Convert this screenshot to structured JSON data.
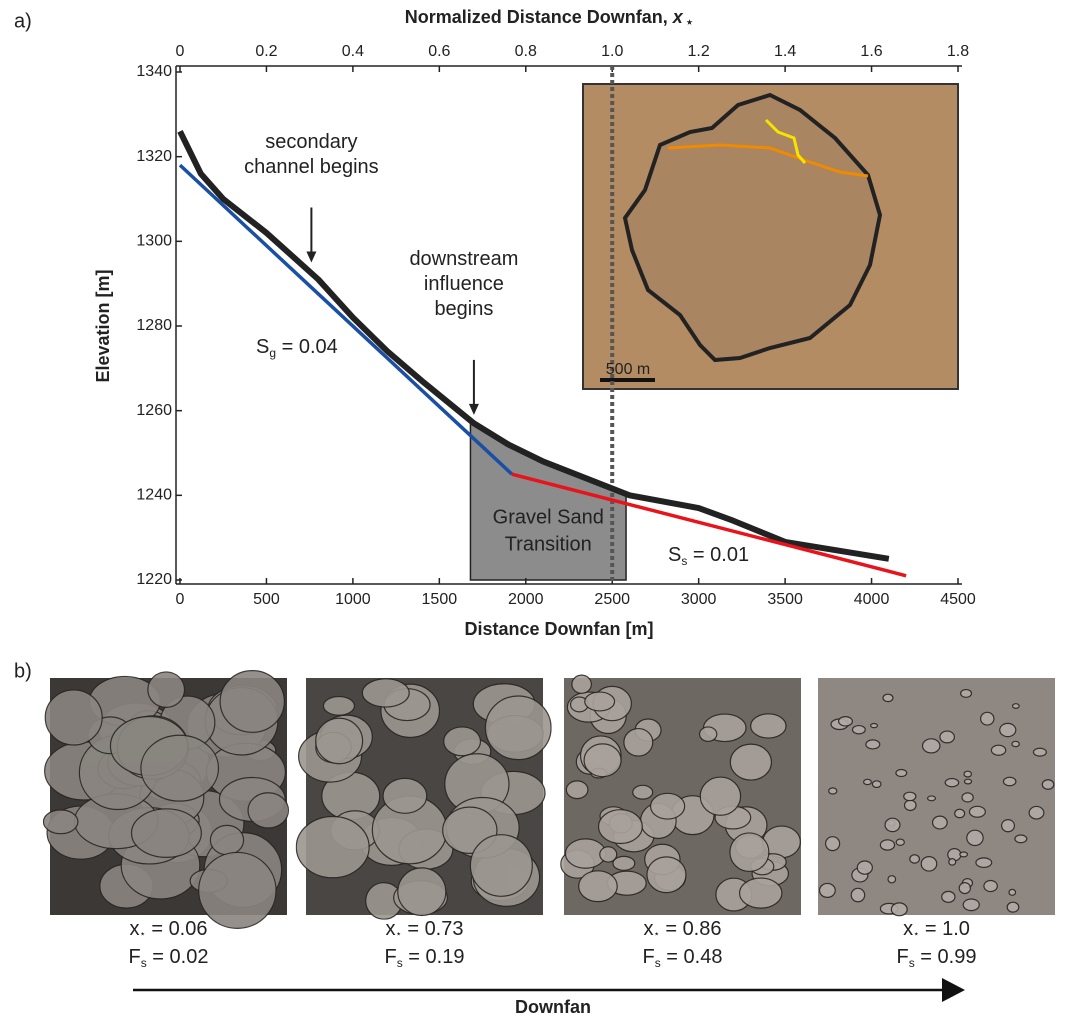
{
  "chart_data": {
    "type": "line",
    "panel_label": "a)",
    "xlabel": "Distance Downfan [m]",
    "ylabel": "Elevation [m]",
    "x2label": {
      "text": "Normalized Distance Downfan, ",
      "var": "x",
      "sub": "⋆"
    },
    "xlim": [
      0,
      4500
    ],
    "xticks": [
      0,
      500,
      1000,
      1500,
      2000,
      2500,
      3000,
      3500,
      4000,
      4500
    ],
    "ylim": [
      1220,
      1340
    ],
    "yticks": [
      1220,
      1240,
      1260,
      1280,
      1300,
      1320,
      1340
    ],
    "x2lim": [
      0,
      1.8
    ],
    "x2ticks": [
      0,
      0.2,
      0.4,
      0.6,
      0.8,
      {
        "value": 1,
        "label": "1.0"
      },
      1.2,
      1.4,
      1.6,
      1.8
    ],
    "series": [
      {
        "color": "#222222",
        "x": [
          0,
          120,
          250,
          500,
          800,
          1000,
          1200,
          1400,
          1700,
          1900,
          2100,
          2600,
          3000,
          3200,
          3500,
          4100
        ],
        "values": [
          1326,
          1316,
          1310,
          1302,
          1291,
          1282,
          1274,
          1267,
          1257,
          1252,
          1248,
          1240,
          1237,
          1234,
          1229,
          1225
        ]
      },
      {
        "color": "#1a4fa3",
        "x": [
          0,
          1920
        ],
        "values": [
          1318,
          1245
        ]
      },
      {
        "color": "#e8141b",
        "x": [
          1920,
          4200
        ],
        "values": [
          1245,
          1221
        ]
      }
    ],
    "shaded_region": {
      "x": [
        1680,
        2580
      ],
      "color": "#8c8c8c",
      "label_lines": [
        "Gravel Sand",
        "Transition"
      ]
    },
    "reference_line": {
      "x2": 1
    },
    "annotations": [
      {
        "lines": [
          "secondary",
          "channel begins"
        ],
        "x": 760,
        "y": 1295
      },
      {
        "lines": [
          "downstream",
          "influence",
          "begins"
        ],
        "x": 1700,
        "y": 1259
      }
    ],
    "slope_labels": [
      {
        "symbol": "S",
        "sub": "g",
        "rest": " = 0.04"
      },
      {
        "symbol": "S",
        "sub": "s",
        "rest": " = 0.01"
      }
    ],
    "inset_scale": "500 m"
  },
  "panel_b": {
    "panel_label": "b)",
    "arrow_label": "Downfan",
    "photos": [
      {
        "x_star": "0.06",
        "f_s": "0.02"
      },
      {
        "x_star": "0.73",
        "f_s": "0.19"
      },
      {
        "x_star": "0.86",
        "f_s": "0.48"
      },
      {
        "x_star": "1.0",
        "f_s": "0.99"
      }
    ],
    "x_symbol": "x",
    "x_sub": "⋆",
    "f_symbol": "F",
    "f_sub": "s",
    "equals": " = "
  }
}
